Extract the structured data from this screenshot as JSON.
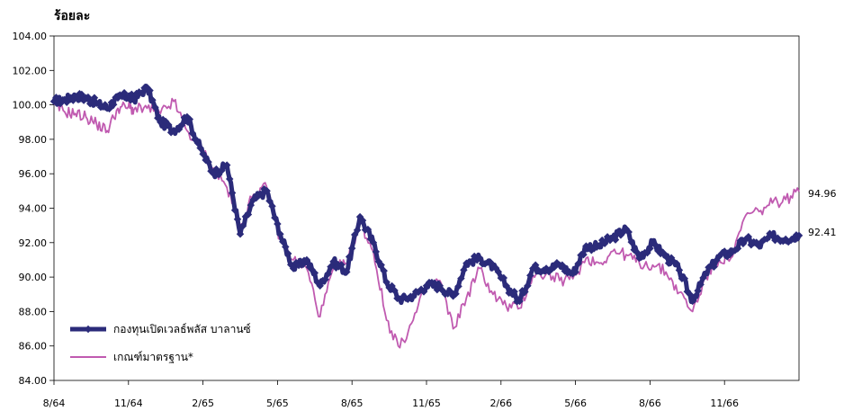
{
  "chart_data": {
    "type": "line",
    "y_unit_label": "ร้อยละ",
    "ylim": [
      84,
      104
    ],
    "y_ticks": [
      "84.00",
      "86.00",
      "88.00",
      "90.00",
      "92.00",
      "94.00",
      "96.00",
      "98.00",
      "100.00",
      "102.00",
      "104.00"
    ],
    "x_tick_labels": [
      "8/64",
      "11/64",
      "2/65",
      "5/65",
      "8/65",
      "11/65",
      "2/66",
      "5/66",
      "8/66",
      "11/66"
    ],
    "x_range": [
      0,
      28
    ],
    "grid": false,
    "legend_position": "bottom-left",
    "series": [
      {
        "name": "กองทุนเปิดเวลธ์พลัส บาลานซ์",
        "color": "#2b2b7a",
        "style": "thick-marker",
        "end_label": "92.41",
        "x": [
          0,
          0.4,
          0.8,
          1.2,
          1.6,
          2.0,
          2.4,
          2.8,
          3.0,
          3.5,
          4.0,
          4.5,
          5.0,
          5.5,
          6.0,
          6.5,
          7.0,
          7.5,
          8.0,
          8.5,
          9.0,
          9.5,
          10.0,
          10.5,
          11.0,
          11.5,
          12.0,
          12.5,
          13.0,
          13.5,
          14.0,
          14.5,
          15.0,
          15.5,
          16.0,
          16.5,
          17.0,
          17.5,
          18.0,
          18.5,
          19.0,
          19.5,
          20.0,
          20.5,
          21.0,
          21.5,
          22.0,
          22.5,
          23.0,
          23.5,
          24.0,
          24.5,
          25.0,
          25.5,
          26.0,
          26.5,
          27.0,
          27.5,
          28.0
        ],
        "values": [
          100.2,
          100.3,
          100.5,
          100.4,
          100.1,
          99.8,
          100.4,
          100.5,
          100.3,
          101.0,
          99.0,
          98.5,
          99.3,
          97.5,
          96.0,
          96.5,
          92.5,
          94.5,
          95.0,
          92.5,
          90.5,
          91.0,
          89.5,
          90.9,
          90.3,
          93.5,
          92.0,
          89.7,
          88.7,
          88.9,
          89.5,
          89.5,
          88.9,
          90.8,
          91.1,
          90.6,
          89.5,
          88.6,
          90.5,
          90.5,
          90.7,
          90.2,
          91.8,
          91.8,
          92.3,
          92.8,
          91.1,
          92.0,
          91.2,
          90.4,
          88.6,
          90.2,
          91.2,
          91.5,
          92.2,
          91.8,
          92.4,
          92.2,
          92.41
        ]
      },
      {
        "name": "เกณฑ์มาตรฐาน*",
        "color": "#c05ab0",
        "style": "thin",
        "end_label": "94.96",
        "x": [
          0,
          0.4,
          0.8,
          1.2,
          1.6,
          2.0,
          2.4,
          2.8,
          3.0,
          3.5,
          4.0,
          4.5,
          5.0,
          5.5,
          6.0,
          6.5,
          7.0,
          7.5,
          8.0,
          8.5,
          9.0,
          9.5,
          10.0,
          10.5,
          11.0,
          11.5,
          12.0,
          12.5,
          13.0,
          13.5,
          14.0,
          14.5,
          15.0,
          15.5,
          16.0,
          16.5,
          17.0,
          17.5,
          18.0,
          18.5,
          19.0,
          19.5,
          20.0,
          20.5,
          21.0,
          21.5,
          22.0,
          22.5,
          23.0,
          23.5,
          24.0,
          24.5,
          25.0,
          25.5,
          26.0,
          26.5,
          27.0,
          27.5,
          28.0
        ],
        "values": [
          100.0,
          99.6,
          99.5,
          99.3,
          98.9,
          98.5,
          99.8,
          99.9,
          99.7,
          99.8,
          99.5,
          100.2,
          98.5,
          97.5,
          96.3,
          95.2,
          93.0,
          94.8,
          95.2,
          92.2,
          91.0,
          90.5,
          87.7,
          90.5,
          90.8,
          93.2,
          91.5,
          87.5,
          85.9,
          87.5,
          89.5,
          89.8,
          87.0,
          88.8,
          90.5,
          89.0,
          88.3,
          88.2,
          90.1,
          90.2,
          89.8,
          89.9,
          91.1,
          90.8,
          91.5,
          91.3,
          90.8,
          90.7,
          90.3,
          89.1,
          88.0,
          90.0,
          91.0,
          91.2,
          93.6,
          93.8,
          94.3,
          94.5,
          94.96
        ]
      }
    ]
  }
}
